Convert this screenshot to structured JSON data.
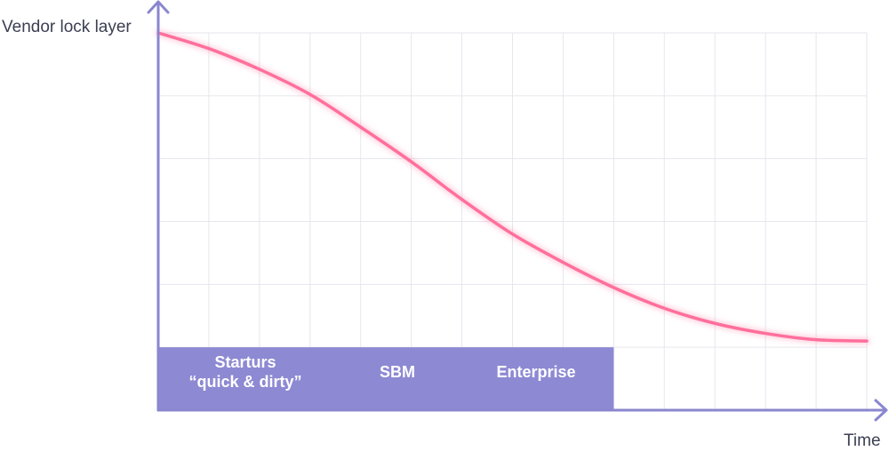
{
  "chart_data": {
    "type": "line",
    "title": "",
    "ylabel": "Vendor lock layer",
    "xlabel": "Time",
    "grid": true,
    "legend": "none",
    "series": [
      {
        "x": [
          0,
          1,
          2,
          3,
          4,
          5,
          6,
          7,
          8,
          9,
          10,
          11,
          12,
          13,
          14
        ],
        "y": [
          5.0,
          4.75,
          4.42,
          4.02,
          3.5,
          2.95,
          2.35,
          1.8,
          1.35,
          0.95,
          0.62,
          0.38,
          0.22,
          0.12,
          0.1
        ],
        "color": "#ff6f9c"
      }
    ],
    "xlim": [
      0,
      14
    ],
    "ylim": [
      -1,
      5
    ],
    "bands": [
      {
        "lines": [
          "Starturs",
          "“quick & dirty”"
        ]
      },
      {
        "lines": [
          "SBM"
        ]
      },
      {
        "lines": [
          "Enterprise"
        ]
      }
    ],
    "colors": {
      "axis": "#8a86cf",
      "grid": "#e6e6ee",
      "band": "#8d89d3",
      "curve": "#ff6f9c",
      "label": "#3a3f52"
    }
  }
}
